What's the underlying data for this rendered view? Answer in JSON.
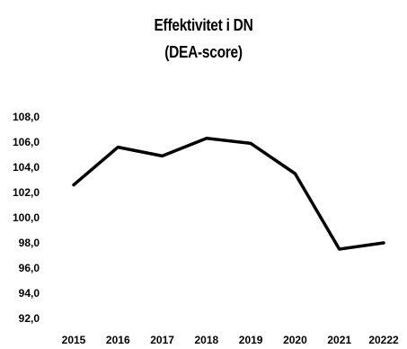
{
  "chart_data": {
    "type": "line",
    "title": "Effektivitet i DN",
    "subtitle": "(DEA-score)",
    "xlabel": "",
    "ylabel": "",
    "categories": [
      "2015",
      "2016",
      "2017",
      "2018",
      "2019",
      "2020",
      "2021",
      "20222"
    ],
    "series": [
      {
        "values": [
          102.6,
          105.6,
          104.9,
          106.3,
          105.9,
          103.5,
          97.5,
          98.0
        ],
        "color": "#000000"
      }
    ],
    "ylim": [
      92.0,
      108.0
    ],
    "yticks": [
      "108,0",
      "106,0",
      "104,0",
      "102,0",
      "100,0",
      "98,0",
      "96,0",
      "94,0",
      "92,0"
    ],
    "grid": false,
    "legend": "none"
  }
}
